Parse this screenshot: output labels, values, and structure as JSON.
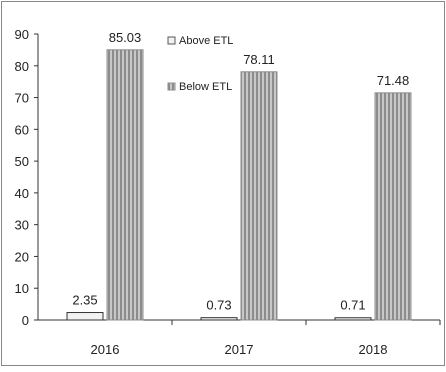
{
  "chart_data": {
    "type": "bar",
    "categories": [
      "2016",
      "2017",
      "2018"
    ],
    "series": [
      {
        "name": "Above ETL",
        "values": [
          2.35,
          0.73,
          0.71
        ]
      },
      {
        "name": "Below ETL",
        "values": [
          85.03,
          78.11,
          71.48
        ]
      }
    ],
    "data_labels": [
      [
        "2.35",
        "0.73",
        "0.71"
      ],
      [
        "85.03",
        "78.11",
        "71.48"
      ]
    ],
    "title": "",
    "xlabel": "",
    "ylabel": "",
    "ylim": [
      0,
      90
    ],
    "yticks": [
      0,
      10,
      20,
      30,
      40,
      50,
      60,
      70,
      80,
      90
    ],
    "grid": false,
    "legend": {
      "position": "top-center",
      "entries": [
        "Above ETL",
        "Below ETL"
      ]
    },
    "colors": {
      "above": "#f2f2f2",
      "below": "#bdbdbd",
      "below_stripe": "#8c8c8c",
      "axis": "#333333",
      "frame": "#888888"
    }
  }
}
